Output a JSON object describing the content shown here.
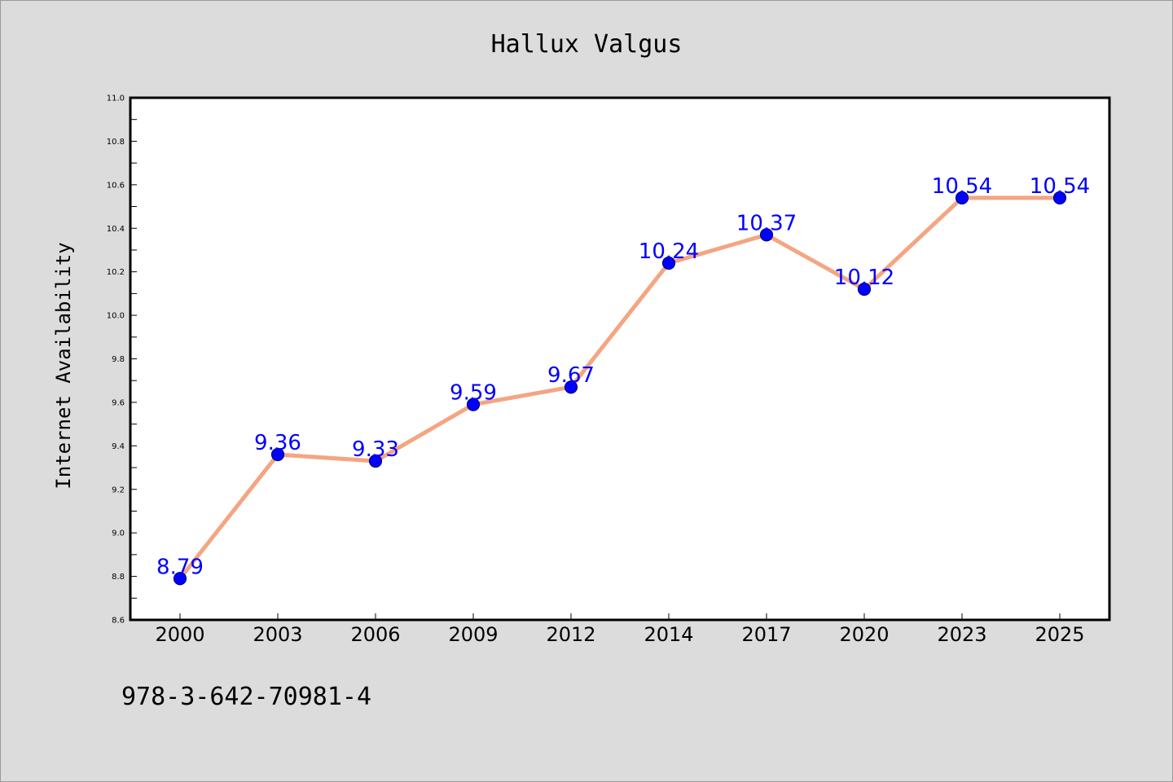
{
  "chart_data": {
    "type": "line",
    "title": "Hallux Valgus",
    "xlabel": "",
    "ylabel": "Internet Availability",
    "categories": [
      "2000",
      "2003",
      "2006",
      "2009",
      "2012",
      "2014",
      "2017",
      "2020",
      "2023",
      "2025"
    ],
    "series": [
      {
        "values": [
          8.79,
          9.36,
          9.33,
          9.59,
          9.67,
          10.24,
          10.37,
          10.12,
          10.54,
          10.54
        ]
      }
    ],
    "data_labels": [
      "8.79",
      "9.36",
      "9.33",
      "9.59",
      "9.67",
      "10.24",
      "10.37",
      "10.12",
      "10.54",
      "10.54"
    ],
    "ylim": [
      8.6,
      11.0
    ],
    "yticks": [
      "8.6",
      "8.8",
      "9.0",
      "9.2",
      "9.4",
      "9.6",
      "9.8",
      "10.0",
      "10.2",
      "10.4",
      "10.6",
      "10.8",
      "11.0"
    ],
    "grid": false,
    "legend": "none",
    "colors": {
      "line": "#f4a582",
      "marker": "#0000ff",
      "marker_edge": "#000080",
      "data_label": "#0000ff",
      "plot_background": "#ffffff",
      "figure_background": "#dcdcdc"
    }
  },
  "footer": {
    "text": "978-3-642-70981-4"
  }
}
